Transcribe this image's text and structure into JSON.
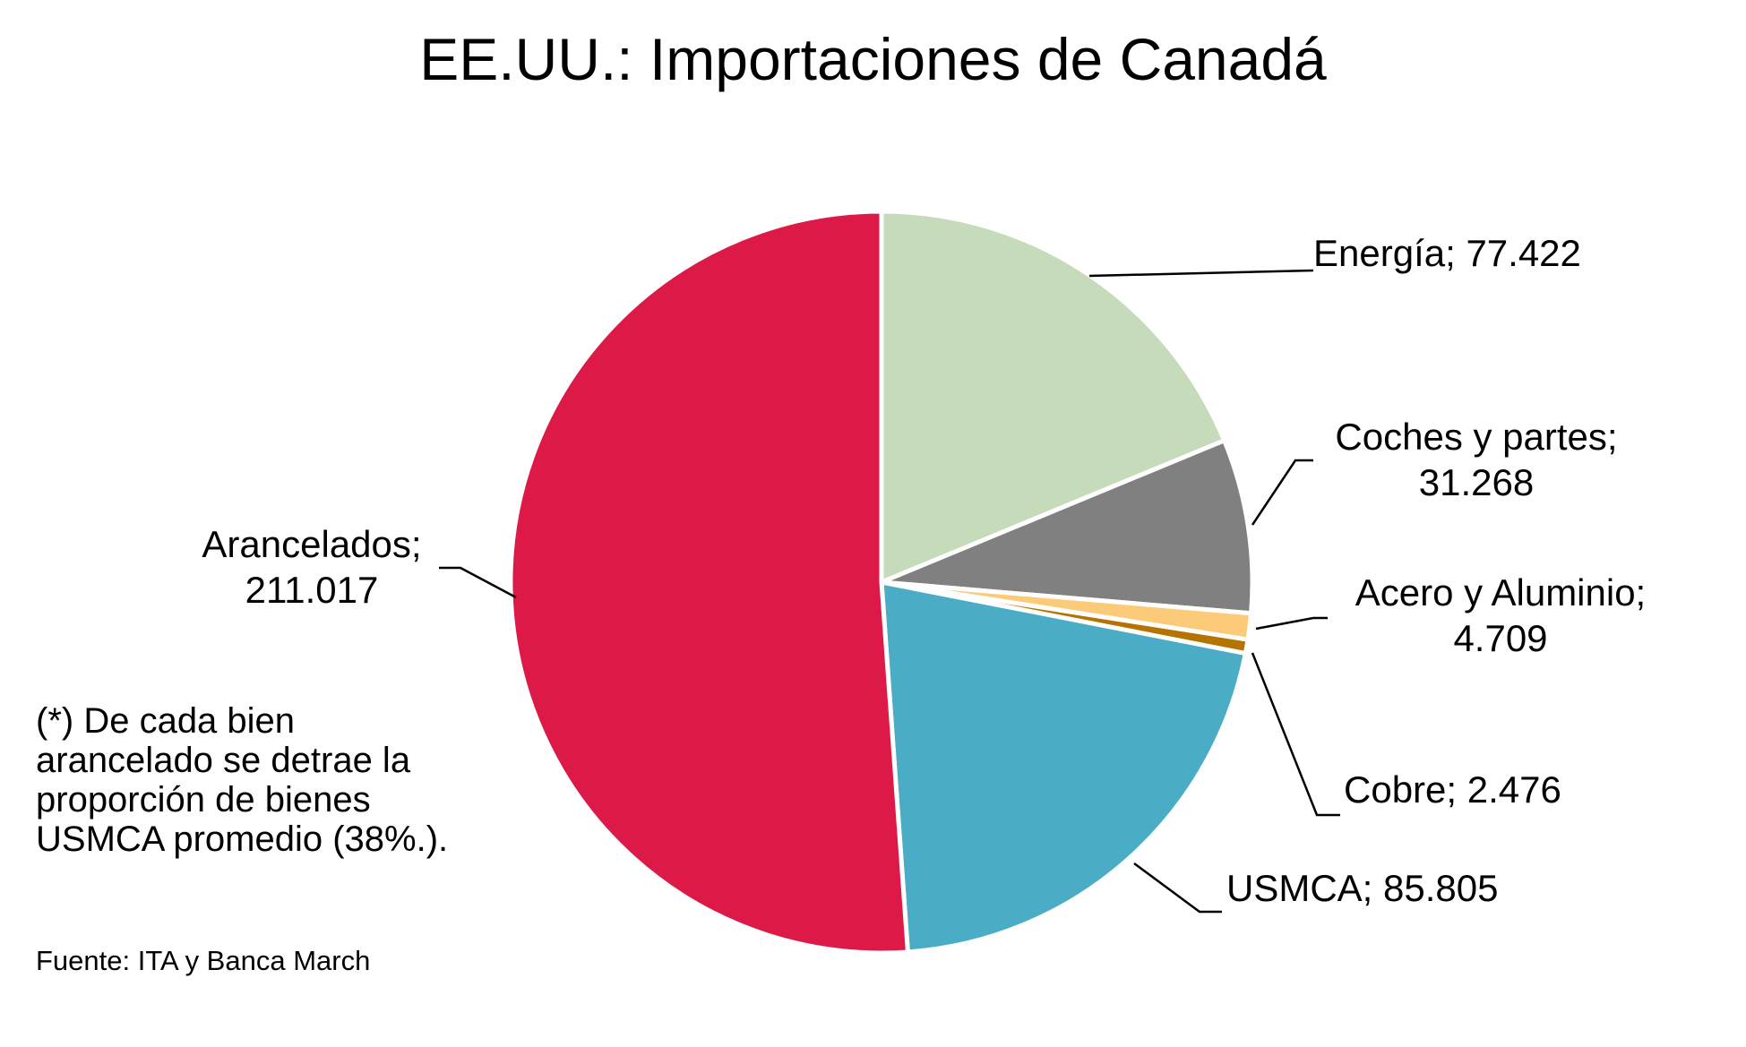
{
  "chart_data": {
    "type": "pie",
    "title": "EE.UU.: Importaciones de Canadá",
    "slices": [
      {
        "name": "Energía",
        "value": 77.422,
        "label": "Energía; 77.422",
        "color": "#C5DBB9"
      },
      {
        "name": "Coches y partes",
        "value": 31.268,
        "label": "Coches y partes;\n31.268",
        "color": "#808080"
      },
      {
        "name": "Acero y Aluminio",
        "value": 4.709,
        "label": "Acero y Aluminio;\n4.709",
        "color": "#FCCB7A"
      },
      {
        "name": "Cobre",
        "value": 2.476,
        "label": "Cobre; 2.476",
        "color": "#B57300"
      },
      {
        "name": "USMCA",
        "value": 85.805,
        "label": "USMCA; 85.805",
        "color": "#4BACC6"
      },
      {
        "name": "Arancelados",
        "value": 211.017,
        "label": "Arancelados;\n211.017",
        "color": "#DD1A47"
      }
    ],
    "start_angle": "12 o'clock",
    "direction": "clockwise",
    "legend": "none",
    "slice_border_color": "#ffffff"
  },
  "footnote": "(*) De cada bien\narancelado se detrae la\nproporción de bienes\nUSMCA promedio (38%.).",
  "source": "Fuente: ITA y Banca March"
}
